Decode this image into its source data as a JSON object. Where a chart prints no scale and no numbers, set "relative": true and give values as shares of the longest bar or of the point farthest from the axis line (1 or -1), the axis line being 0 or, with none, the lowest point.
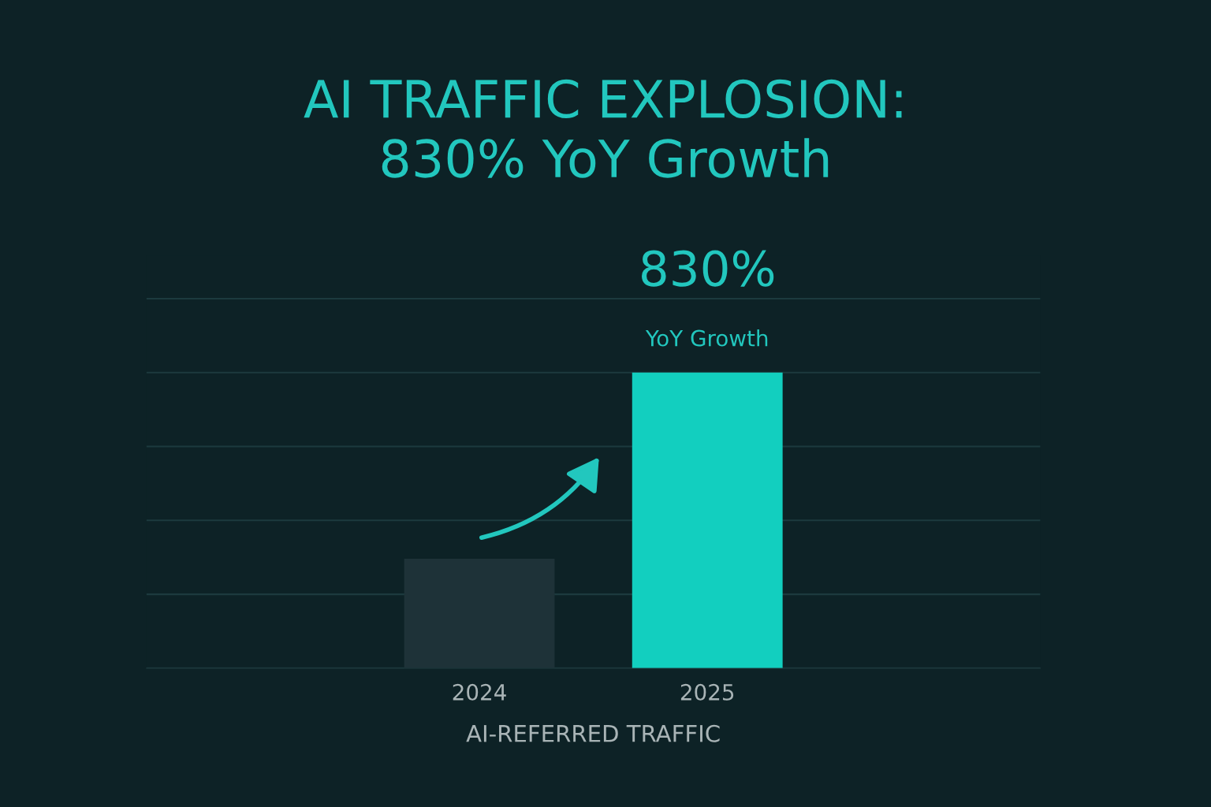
{
  "chart_data": {
    "type": "bar",
    "title": "AI TRAFFIC EXPLOSION:\n830% YoY Growth",
    "xlabel": "AI-REFERRED TRAFFIC",
    "categories": [
      "2024",
      "2025"
    ],
    "values": [
      0.37,
      1
    ],
    "colors": [
      "#1e3238",
      "#12cfbf"
    ],
    "relative": true,
    "grid": "y",
    "annotations": [
      {
        "text": "830%",
        "x": "2025",
        "y": 1
      },
      {
        "text": "YoY Growth",
        "x": "2025",
        "y": 1
      }
    ]
  }
}
